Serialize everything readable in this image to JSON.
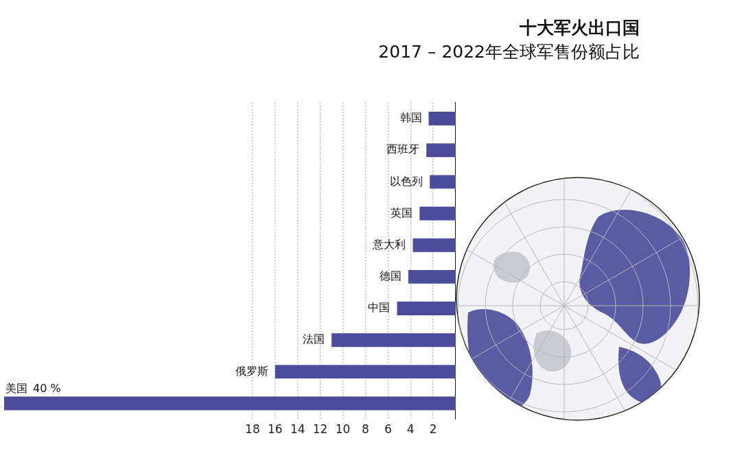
{
  "chart_data": {
    "type": "bar",
    "orientation": "horizontal",
    "title": "十大军火出口国",
    "subtitle": "2017 – 2022年全球军售份额占比",
    "categories": [
      "韩国",
      "西班牙",
      "以色列",
      "英国",
      "意大利",
      "德国",
      "中国",
      "法国",
      "俄罗斯",
      "美国"
    ],
    "values": [
      2.4,
      2.6,
      2.3,
      3.2,
      3.8,
      4.2,
      5.2,
      11,
      16,
      40
    ],
    "value_labels": [
      null,
      null,
      null,
      null,
      null,
      null,
      null,
      null,
      null,
      "40 %"
    ],
    "color": "#4b4d9a",
    "xlim": [
      40,
      0
    ],
    "xticks": [
      2,
      4,
      6,
      8,
      10,
      12,
      14,
      16,
      18
    ],
    "grid": "x"
  }
}
